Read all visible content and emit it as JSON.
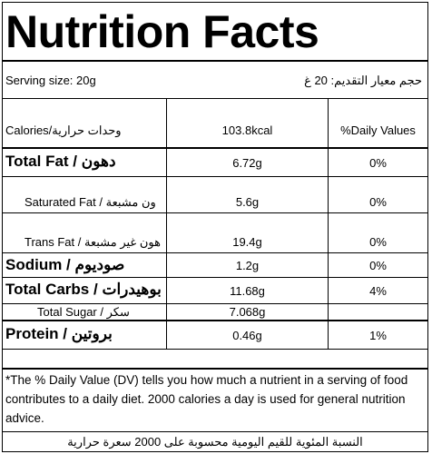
{
  "title": "Nutrition Facts",
  "serving": {
    "left": "Serving size: 20g",
    "right": "حجم معيار التقديم: 20 غ"
  },
  "header": {
    "label": "Calories/وحدات حرارية",
    "value": "103.8kcal",
    "dv": "%Daily Values"
  },
  "rows": [
    {
      "label": "Total Fat / دهون",
      "value": "6.72g",
      "dv": "0%"
    },
    {
      "label": "Saturated Fat / ون مشبعة",
      "value": "5.6g",
      "dv": "0%"
    },
    {
      "label": "Trans Fat / هون غير مشبعة",
      "value": "19.4g",
      "dv": "0%"
    },
    {
      "label": "Sodium / صوديوم",
      "value": "1.2g",
      "dv": "0%"
    },
    {
      "label": "Total Carbs / بوهيدرات",
      "value": "11.68g",
      "dv": "4%"
    },
    {
      "label": "Total Sugar / سكر",
      "value": "7.068g",
      "dv": ""
    },
    {
      "label": "Protein / بروتين",
      "value": "0.46g",
      "dv": "1%"
    }
  ],
  "footnote": "*The % Daily Value (DV) tells you how much a nutrient in a serving of food contributes to a daily diet. 2000 calories a day is used for general nutrition advice.",
  "footnote_ar": "النسبة المئوية للقيم اليومية محسوبة على 2000 سعرة حرارية"
}
